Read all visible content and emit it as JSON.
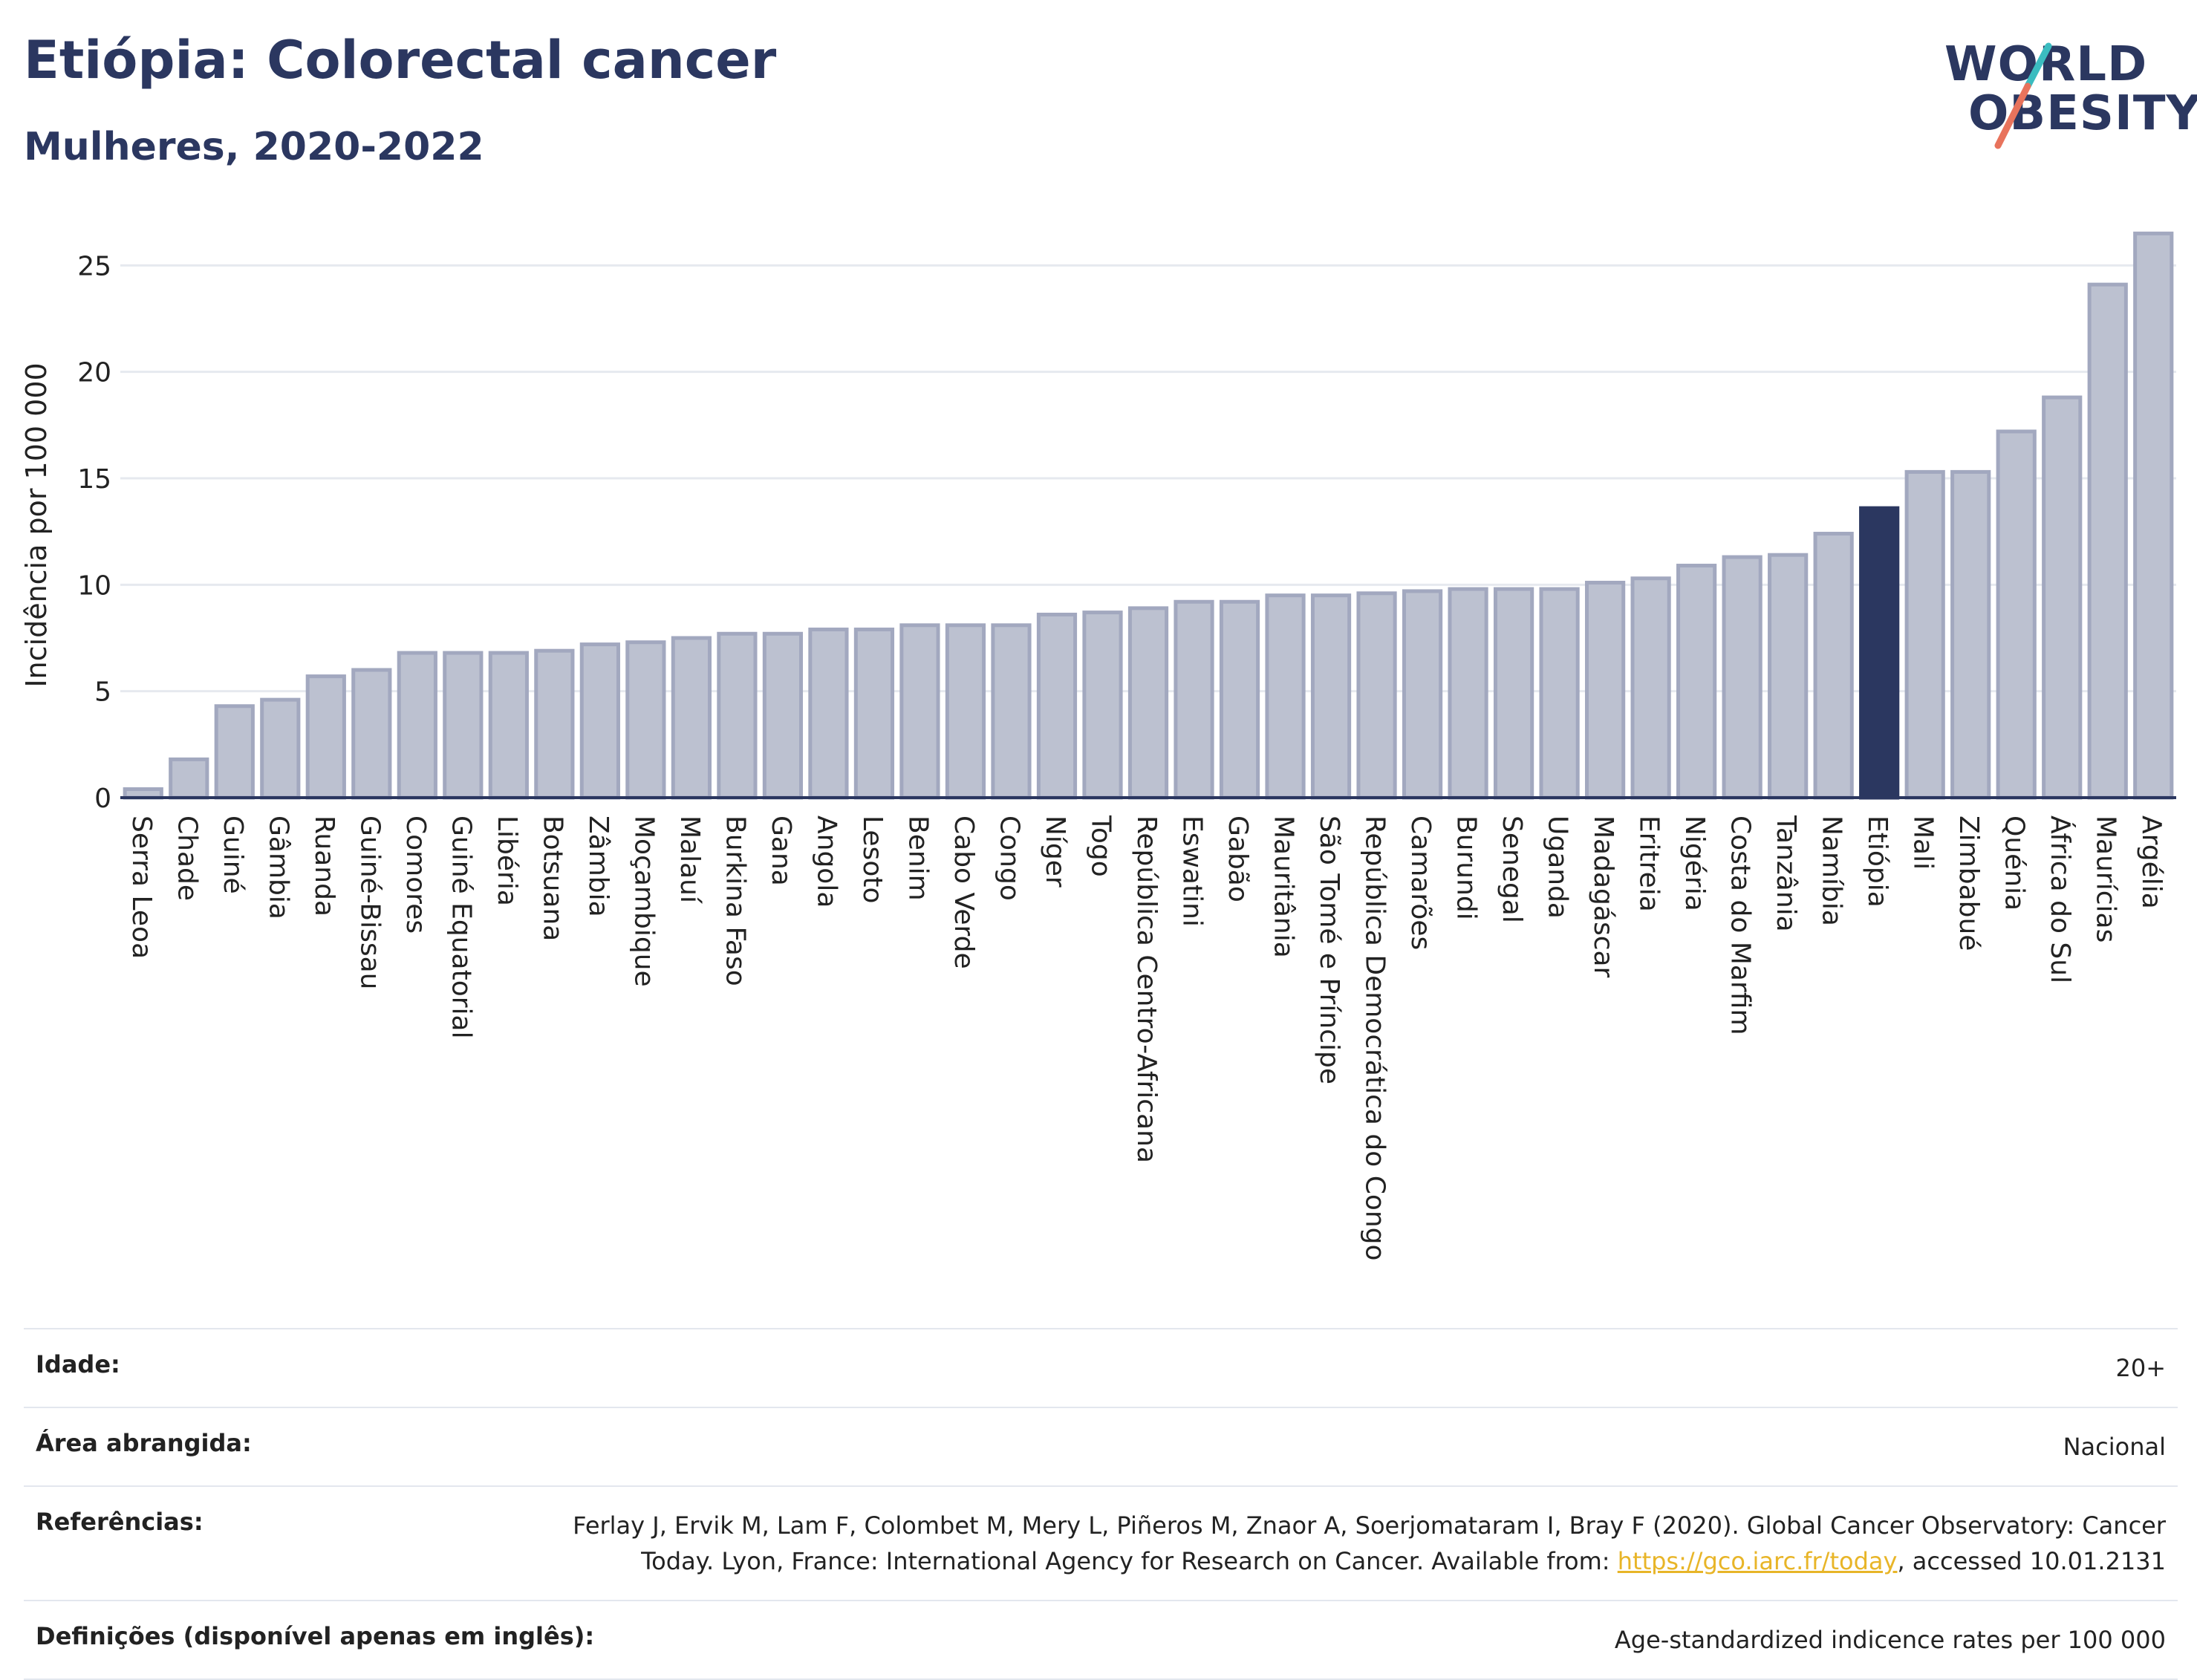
{
  "title": "Etiópia: Colorectal cancer",
  "subtitle": "Mulheres, 2020-2022",
  "logo": {
    "line1": "WORLD",
    "line2": "OBESITY"
  },
  "colors": {
    "bar": "#bcc1d0",
    "bar_border": "#a2a8bf",
    "highlight": "#2b3760",
    "title": "#2b3760",
    "grid": "#e6e9ef",
    "axis": "#2b3760",
    "logo_teal": "#3bbcc0",
    "logo_coral": "#e8735c",
    "link": "#e8b528"
  },
  "chart_data": {
    "type": "bar",
    "ylabel": "Incidência por 100 000",
    "xlabel": "",
    "ylim": [
      0,
      27
    ],
    "yticks": [
      0,
      5,
      10,
      15,
      20,
      25
    ],
    "grid": true,
    "highlight": "Etiópia",
    "categories": [
      "Serra Leoa",
      "Chade",
      "Guiné",
      "Gâmbia",
      "Ruanda",
      "Guiné-Bissau",
      "Comores",
      "Guiné Equatorial",
      "Libéria",
      "Botsuana",
      "Zâmbia",
      "Moçambique",
      "Malauí",
      "Burkina Faso",
      "Gana",
      "Angola",
      "Lesoto",
      "Benim",
      "Cabo Verde",
      "Congo",
      "Níger",
      "Togo",
      "República Centro-Africana",
      "Eswatini",
      "Gabão",
      "Mauritânia",
      "São Tomé e Príncipe",
      "República Democrática do Congo",
      "Camarões",
      "Burundi",
      "Senegal",
      "Uganda",
      "Madagáscar",
      "Eritreia",
      "Nigéria",
      "Costa do Marfim",
      "Tanzânia",
      "Namíbia",
      "Etiópia",
      "Mali",
      "Zimbabué",
      "Quénia",
      "África do Sul",
      "Maurícias",
      "Argélia"
    ],
    "values": [
      0.4,
      1.8,
      4.3,
      4.6,
      5.7,
      6.0,
      6.8,
      6.8,
      6.8,
      6.9,
      7.2,
      7.3,
      7.5,
      7.7,
      7.7,
      7.9,
      7.9,
      8.1,
      8.1,
      8.1,
      8.6,
      8.7,
      8.9,
      9.2,
      9.2,
      9.5,
      9.5,
      9.6,
      9.7,
      9.8,
      9.8,
      9.8,
      10.1,
      10.3,
      10.9,
      11.3,
      11.4,
      12.4,
      13.6,
      15.3,
      15.3,
      17.2,
      18.8,
      24.1,
      26.5
    ]
  },
  "info": {
    "age_label": "Idade:",
    "age_value": "20+",
    "area_label": "Área abrangida:",
    "area_value": "Nacional",
    "ref_label": "Referências:",
    "ref_text_1": "Ferlay J, Ervik M, Lam F, Colombet M, Mery L, Piñeros M, Znaor A, Soerjomataram I, Bray F (2020). Global Cancer Observatory: Cancer Today. Lyon, France: International Agency for Research on Cancer. Available from: ",
    "ref_link": "https://gco.iarc.fr/today",
    "ref_text_2": ", accessed 10.01.2131",
    "def_label": "Definições (disponível apenas em inglês):",
    "def_value": "Age-standardized indicence rates per 100 000"
  }
}
